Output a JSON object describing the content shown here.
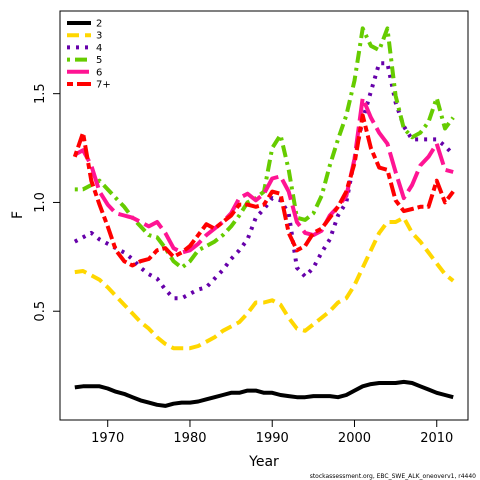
{
  "chart_data": {
    "type": "line",
    "xlabel": "Year",
    "ylabel": "F",
    "xlim": [
      1964.2,
      2013.8
    ],
    "ylim": [
      0.0,
      1.88
    ],
    "xticks": [
      1970,
      1980,
      1990,
      2000,
      2010
    ],
    "yticks": [
      0.5,
      1.0,
      1.5
    ],
    "ytick_labels": [
      "0.5",
      "1.0",
      "1.5"
    ],
    "grid": false,
    "legend": {
      "position": "top-left"
    },
    "footnote": "stockassessment.org, EBC_SWE_ALK_oneoverv1, r4440",
    "x": [
      1966,
      1967,
      1968,
      1969,
      1970,
      1971,
      1972,
      1973,
      1974,
      1975,
      1976,
      1977,
      1978,
      1979,
      1980,
      1981,
      1982,
      1983,
      1984,
      1985,
      1986,
      1987,
      1988,
      1989,
      1990,
      1991,
      1992,
      1993,
      1994,
      1995,
      1996,
      1997,
      1998,
      1999,
      2000,
      2001,
      2002,
      2003,
      2004,
      2005,
      2006,
      2007,
      2008,
      2009,
      2010,
      2011,
      2012
    ],
    "series": [
      {
        "name": "2",
        "color": "#000000",
        "dash": "solid",
        "values": [
          0.15,
          0.155,
          0.155,
          0.155,
          0.145,
          0.13,
          0.12,
          0.105,
          0.09,
          0.08,
          0.07,
          0.065,
          0.075,
          0.08,
          0.08,
          0.085,
          0.095,
          0.105,
          0.115,
          0.125,
          0.125,
          0.135,
          0.135,
          0.125,
          0.125,
          0.115,
          0.11,
          0.105,
          0.105,
          0.11,
          0.11,
          0.11,
          0.105,
          0.115,
          0.135,
          0.155,
          0.165,
          0.17,
          0.17,
          0.17,
          0.175,
          0.17,
          0.155,
          0.14,
          0.125,
          0.115,
          0.105
        ]
      },
      {
        "name": "3",
        "color": "#FFD700",
        "dash": "dash",
        "values": [
          0.68,
          0.685,
          0.665,
          0.645,
          0.61,
          0.57,
          0.53,
          0.49,
          0.45,
          0.42,
          0.38,
          0.35,
          0.33,
          0.33,
          0.33,
          0.34,
          0.36,
          0.38,
          0.41,
          0.43,
          0.45,
          0.49,
          0.54,
          0.54,
          0.55,
          0.53,
          0.47,
          0.42,
          0.41,
          0.44,
          0.47,
          0.5,
          0.54,
          0.56,
          0.62,
          0.7,
          0.78,
          0.86,
          0.91,
          0.91,
          0.93,
          0.86,
          0.82,
          0.77,
          0.72,
          0.67,
          0.64
        ]
      },
      {
        "name": "4",
        "color": "#6600AA",
        "dash": "dot",
        "values": [
          0.82,
          0.84,
          0.86,
          0.83,
          0.81,
          0.79,
          0.77,
          0.74,
          0.7,
          0.67,
          0.65,
          0.6,
          0.56,
          0.56,
          0.58,
          0.6,
          0.61,
          0.65,
          0.69,
          0.74,
          0.78,
          0.83,
          0.93,
          0.97,
          1.02,
          1.01,
          0.95,
          0.7,
          0.66,
          0.7,
          0.77,
          0.83,
          0.94,
          1.0,
          1.2,
          1.38,
          1.51,
          1.64,
          1.64,
          1.46,
          1.35,
          1.29,
          1.29,
          1.29,
          1.29,
          1.26,
          1.22
        ]
      },
      {
        "name": "5",
        "color": "#66CC00",
        "dash": "dashdot",
        "values": [
          1.06,
          1.06,
          1.08,
          1.1,
          1.06,
          1.02,
          0.98,
          0.93,
          0.89,
          0.85,
          0.84,
          0.79,
          0.73,
          0.7,
          0.73,
          0.78,
          0.8,
          0.82,
          0.85,
          0.89,
          0.94,
          1.0,
          1.02,
          1.05,
          1.25,
          1.31,
          1.15,
          0.93,
          0.92,
          0.95,
          1.03,
          1.17,
          1.29,
          1.4,
          1.56,
          1.8,
          1.72,
          1.7,
          1.8,
          1.49,
          1.34,
          1.3,
          1.32,
          1.37,
          1.48,
          1.34,
          1.39
        ]
      },
      {
        "name": "6",
        "color": "#FF1493",
        "dash": "longdash",
        "values": [
          1.22,
          1.24,
          1.17,
          1.05,
          0.99,
          0.95,
          0.94,
          0.93,
          0.91,
          0.89,
          0.91,
          0.86,
          0.79,
          0.77,
          0.78,
          0.81,
          0.85,
          0.88,
          0.91,
          0.95,
          1.02,
          1.04,
          1.01,
          1.04,
          1.11,
          1.12,
          1.05,
          0.91,
          0.86,
          0.85,
          0.87,
          0.94,
          0.98,
          1.03,
          1.2,
          1.48,
          1.39,
          1.32,
          1.27,
          1.14,
          1.02,
          1.08,
          1.17,
          1.21,
          1.27,
          1.15,
          1.14
        ]
      },
      {
        "name": "7+",
        "color": "#FF0000",
        "dash": "twodash",
        "values": [
          1.21,
          1.32,
          1.1,
          0.99,
          0.89,
          0.78,
          0.73,
          0.71,
          0.73,
          0.74,
          0.78,
          0.79,
          0.75,
          0.77,
          0.8,
          0.85,
          0.9,
          0.88,
          0.91,
          0.94,
          0.99,
          0.99,
          0.98,
          0.99,
          1.05,
          1.04,
          0.86,
          0.78,
          0.8,
          0.86,
          0.88,
          0.93,
          0.98,
          1.05,
          1.18,
          1.4,
          1.25,
          1.16,
          1.15,
          1.01,
          0.96,
          0.97,
          0.98,
          0.98,
          1.1,
          1.0,
          1.05
        ]
      }
    ]
  }
}
